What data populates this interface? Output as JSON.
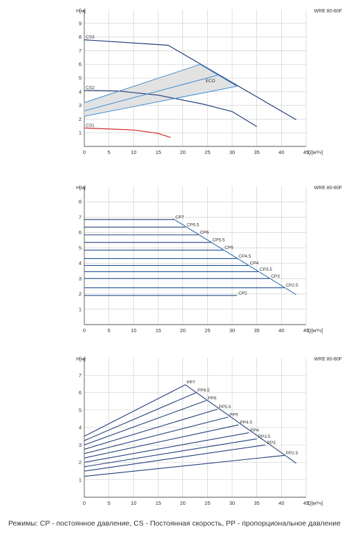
{
  "footer": "Режимы: CP - постоянное давление, CS - Постоянная скорость, PP - пропорциональное давление",
  "colors": {
    "axis": "#555555",
    "grid": "#c8c8c8",
    "navy": "#1f3d7a",
    "blue": "#2f6fb5",
    "light_blue": "#3d8fd6",
    "red": "#d62020",
    "band": "#e2e2e2",
    "text": "#333333"
  },
  "chart_data": [
    {
      "type": "line",
      "title": "WRE 80-80F",
      "ylabel": "H[м]",
      "xlabel": "Q[м³/ч]",
      "xlim": [
        0,
        45
      ],
      "ylim": [
        0,
        10
      ],
      "xticks": [
        0,
        5,
        10,
        15,
        20,
        25,
        30,
        35,
        40,
        45
      ],
      "yticks": [
        1,
        2,
        3,
        4,
        5,
        6,
        7,
        8,
        9
      ],
      "series": [
        {
          "name": "CS3",
          "color": "navy",
          "points": [
            [
              0,
              7.8
            ],
            [
              17,
              7.4
            ],
            [
              43,
              1.95
            ]
          ]
        },
        {
          "name": "CS2",
          "color": "navy",
          "points": [
            [
              0,
              4.1
            ],
            [
              7,
              4.05
            ],
            [
              15,
              3.75
            ],
            [
              24,
              3.1
            ],
            [
              30,
              2.55
            ],
            [
              35,
              1.45
            ]
          ]
        },
        {
          "name": "CS1",
          "color": "red",
          "points": [
            [
              0,
              1.35
            ],
            [
              10,
              1.2
            ],
            [
              15,
              0.95
            ],
            [
              17.5,
              0.65
            ]
          ]
        },
        {
          "name": "",
          "color": "light_blue",
          "points": [
            [
              0,
              3.2
            ],
            [
              23.5,
              6.0
            ]
          ]
        },
        {
          "name": "",
          "color": "light_blue",
          "points": [
            [
              0,
              2.6
            ],
            [
              27,
              5.2
            ]
          ]
        },
        {
          "name": "",
          "color": "light_blue",
          "points": [
            [
              0,
              2.2
            ],
            [
              31,
              4.4
            ]
          ]
        },
        {
          "name": "",
          "color": "light_blue",
          "points": [
            [
              23.5,
              6.0
            ],
            [
              31,
              4.4
            ]
          ]
        }
      ],
      "band": {
        "name": "ECO",
        "points": [
          [
            0,
            3.2
          ],
          [
            23.5,
            6.0
          ],
          [
            31,
            4.4
          ],
          [
            0,
            2.2
          ]
        ]
      }
    },
    {
      "type": "line",
      "title": "WRE 80-80F",
      "ylabel": "H[м]",
      "xlabel": "Q[м³/ч]",
      "xlim": [
        0,
        45
      ],
      "ylim": [
        0,
        9
      ],
      "xticks": [
        0,
        5,
        10,
        15,
        20,
        25,
        30,
        35,
        40,
        45
      ],
      "yticks": [
        1,
        2,
        3,
        4,
        5,
        6,
        7,
        8
      ],
      "boundary": [
        [
          18,
          6.9
        ],
        [
          43,
          1.95
        ]
      ],
      "series": [
        {
          "name": "CP7",
          "h": 6.85,
          "qmax": 18.2
        },
        {
          "name": "CP6.5",
          "h": 6.35,
          "qmax": 20.5
        },
        {
          "name": "CP6",
          "h": 5.85,
          "qmax": 23.2
        },
        {
          "name": "CP5.5",
          "h": 5.35,
          "qmax": 25.7
        },
        {
          "name": "CP5",
          "h": 4.85,
          "qmax": 28.2
        },
        {
          "name": "CP4.5",
          "h": 4.3,
          "qmax": 31.0
        },
        {
          "name": "CP4",
          "h": 3.85,
          "qmax": 33.3
        },
        {
          "name": "CP3.5",
          "h": 3.45,
          "qmax": 35.3
        },
        {
          "name": "CP3",
          "h": 3.0,
          "qmax": 37.6
        },
        {
          "name": "CP2.5",
          "h": 2.4,
          "qmax": 40.6
        },
        {
          "name": "CP2",
          "h": 1.9,
          "qmax": 31.0
        }
      ]
    },
    {
      "type": "line",
      "title": "WRE 80-80F",
      "ylabel": "H[м]",
      "xlabel": "Q[м³/ч]",
      "xlim": [
        0,
        45
      ],
      "ylim": [
        0,
        8
      ],
      "xticks": [
        0,
        5,
        10,
        15,
        20,
        25,
        30,
        35,
        40,
        45
      ],
      "yticks": [
        1,
        2,
        3,
        4,
        5,
        6,
        7
      ],
      "boundary": [
        [
          20.5,
          6.45
        ],
        [
          43,
          1.95
        ]
      ],
      "series": [
        {
          "name": "PP7",
          "h0": 3.5,
          "q": 20.5,
          "h": 6.45
        },
        {
          "name": "PP6.5",
          "h0": 3.25,
          "q": 22.7,
          "h": 6.0
        },
        {
          "name": "PP6",
          "h0": 3.0,
          "q": 24.8,
          "h": 5.55
        },
        {
          "name": "PP5.5",
          "h0": 2.75,
          "q": 27.0,
          "h": 5.05
        },
        {
          "name": "PP5",
          "h0": 2.5,
          "q": 29.2,
          "h": 4.6
        },
        {
          "name": "PP4.5",
          "h0": 2.25,
          "q": 31.3,
          "h": 4.15
        },
        {
          "name": "PP4",
          "h0": 2.0,
          "q": 33.4,
          "h": 3.7
        },
        {
          "name": "PP3.5",
          "h0": 1.75,
          "q": 35.0,
          "h": 3.35
        },
        {
          "name": "PP3",
          "h0": 1.5,
          "q": 36.8,
          "h": 3.0
        },
        {
          "name": "PP2.5",
          "h0": 1.2,
          "q": 40.6,
          "h": 2.4
        }
      ]
    }
  ]
}
